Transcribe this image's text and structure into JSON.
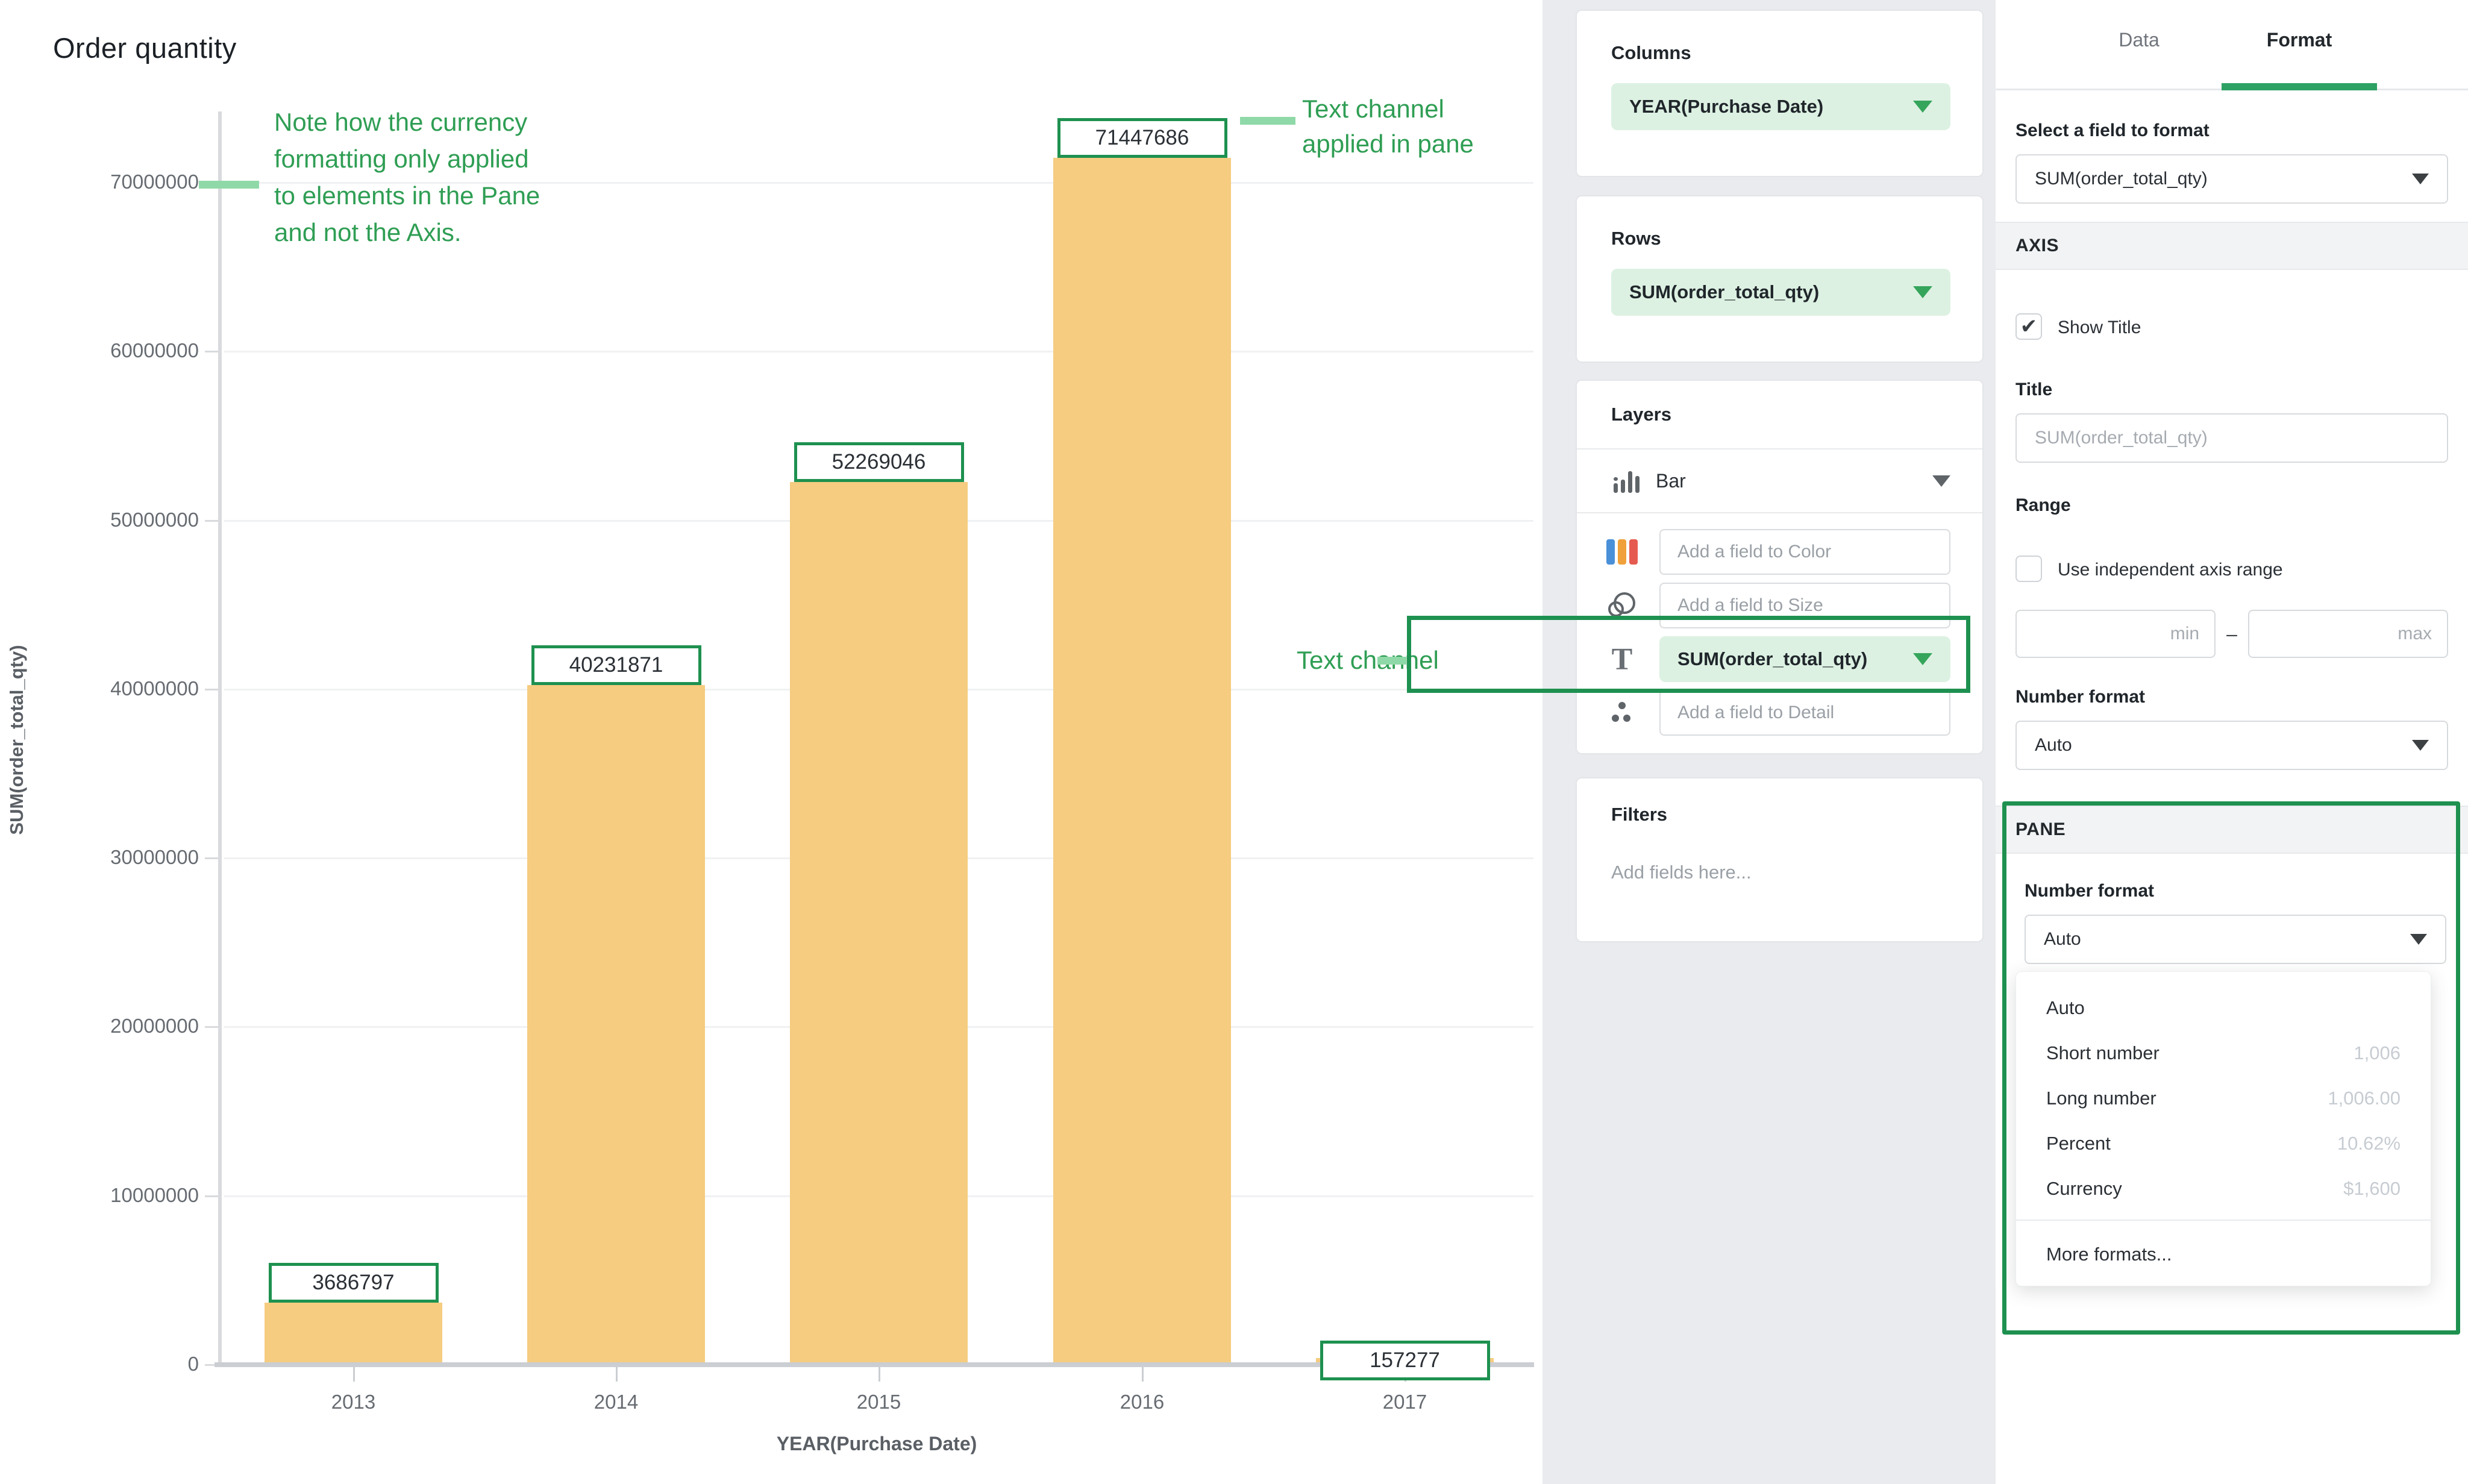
{
  "chart_data": {
    "type": "bar",
    "title": "Order quantity",
    "categories": [
      "2013",
      "2014",
      "2015",
      "2016",
      "2017"
    ],
    "values": [
      3686797,
      40231871,
      52269046,
      71447686,
      157277
    ],
    "value_labels": [
      "3686797",
      "40231871",
      "52269046",
      "71447686",
      "157277"
    ],
    "xlabel": "YEAR(Purchase Date)",
    "ylabel": "SUM(order_total_qty)",
    "ylim": [
      0,
      73000000
    ],
    "yticks": [
      0,
      10000000,
      20000000,
      30000000,
      40000000,
      50000000,
      60000000,
      70000000
    ],
    "ytick_labels": [
      "0",
      "10000000",
      "20000000",
      "30000000",
      "40000000",
      "50000000",
      "60000000",
      "70000000"
    ],
    "grid": true,
    "legend": "none",
    "bar_color": "#F5CC80",
    "label_box_border_color": "#1E9150"
  },
  "annotations": {
    "note_lines": [
      "Note how the currency",
      "formatting only applied",
      "to elements in the Pane",
      "and not the Axis."
    ],
    "pane_note_lines": [
      "Text channel",
      "applied in pane"
    ],
    "text_channel_note": "Text channel",
    "green_text_color": "#2F9E54",
    "dash_color": "#8FD9A8"
  },
  "channels_panel": {
    "columns_card": {
      "title": "Columns",
      "pill": "YEAR(Purchase Date)"
    },
    "rows_card": {
      "title": "Rows",
      "pill": "SUM(order_total_qty)"
    },
    "layers_card": {
      "title": "Layers",
      "layer_type": "Bar",
      "color_placeholder": "Add a field to Color",
      "size_placeholder": "Add a field to Size",
      "text_pill": "SUM(order_total_qty)",
      "detail_placeholder": "Add a field to Detail"
    },
    "filters_card": {
      "title": "Filters",
      "placeholder": "Add fields here..."
    }
  },
  "format_panel": {
    "tabs": {
      "data": "Data",
      "format": "Format"
    },
    "select_label": "Select a field to format",
    "field_value": "SUM(order_total_qty)",
    "axis_section": "AXIS",
    "show_title_label": "Show Title",
    "show_title_checked": "✔",
    "title_label": "Title",
    "title_placeholder": "SUM(order_total_qty)",
    "range_label": "Range",
    "independent_range_label": "Use independent axis range",
    "min_placeholder": "min",
    "max_placeholder": "max",
    "range_dash": "–",
    "axis_number_format_label": "Number format",
    "axis_number_format_value": "Auto",
    "pane_section": "PANE",
    "pane_number_format_label": "Number format",
    "pane_number_format_value": "Auto",
    "menu": {
      "items": [
        {
          "label": "Auto",
          "example": ""
        },
        {
          "label": "Short number",
          "example": "1,006"
        },
        {
          "label": "Long number",
          "example": "1,006.00"
        },
        {
          "label": "Percent",
          "example": "10.62%"
        },
        {
          "label": "Currency",
          "example": "$1,600"
        }
      ],
      "footer": "More formats..."
    },
    "accent_green": "#2EA164",
    "annotation_border_green": "#1E9150"
  }
}
